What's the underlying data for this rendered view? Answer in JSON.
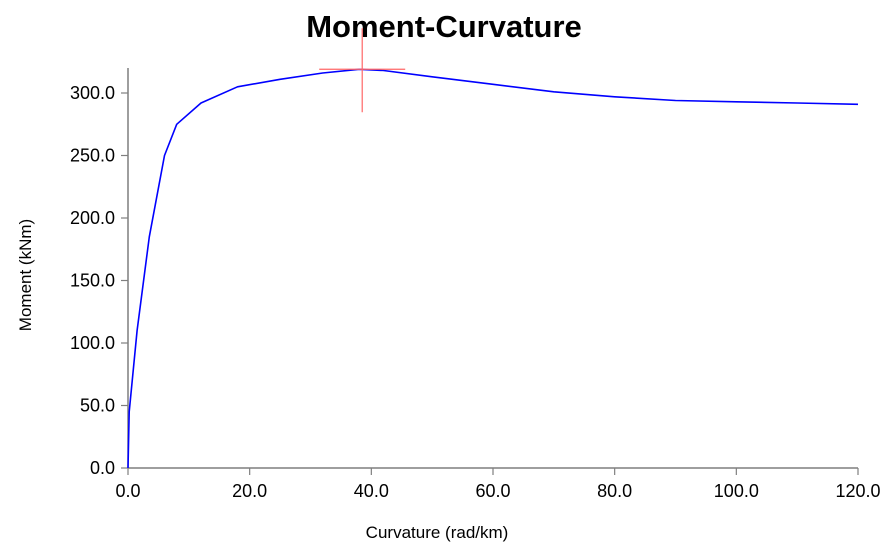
{
  "chart_data": {
    "type": "line",
    "title": "Moment-Curvature",
    "xlabel": "Curvature (rad/km)",
    "ylabel": "Moment (kNm)",
    "xlim": [
      0,
      120
    ],
    "ylim": [
      0,
      320
    ],
    "xticks": [
      0,
      20,
      40,
      60,
      80,
      100,
      120
    ],
    "yticks": [
      0,
      50,
      100,
      150,
      200,
      250,
      300
    ],
    "xtick_labels": [
      "0.0",
      "20.0",
      "40.0",
      "60.0",
      "80.0",
      "100.0",
      "120.0"
    ],
    "ytick_labels": [
      "0.0",
      "50.0",
      "100.0",
      "150.0",
      "200.0",
      "250.0",
      "300.0"
    ],
    "grid": false,
    "series": [
      {
        "color": "#0000ff",
        "x": [
          0,
          0.2,
          1.5,
          3.5,
          6,
          8,
          12,
          18,
          25,
          32,
          38,
          42,
          50,
          60,
          70,
          80,
          90,
          100,
          110,
          120
        ],
        "y": [
          0,
          45,
          110,
          185,
          250,
          275,
          292,
          305,
          311,
          316,
          319,
          318,
          313,
          307,
          301,
          297,
          294,
          293,
          292,
          291
        ]
      }
    ],
    "marker": {
      "x": 38.5,
      "y": 319,
      "color": "#ff6666",
      "type": "crosshair"
    }
  }
}
